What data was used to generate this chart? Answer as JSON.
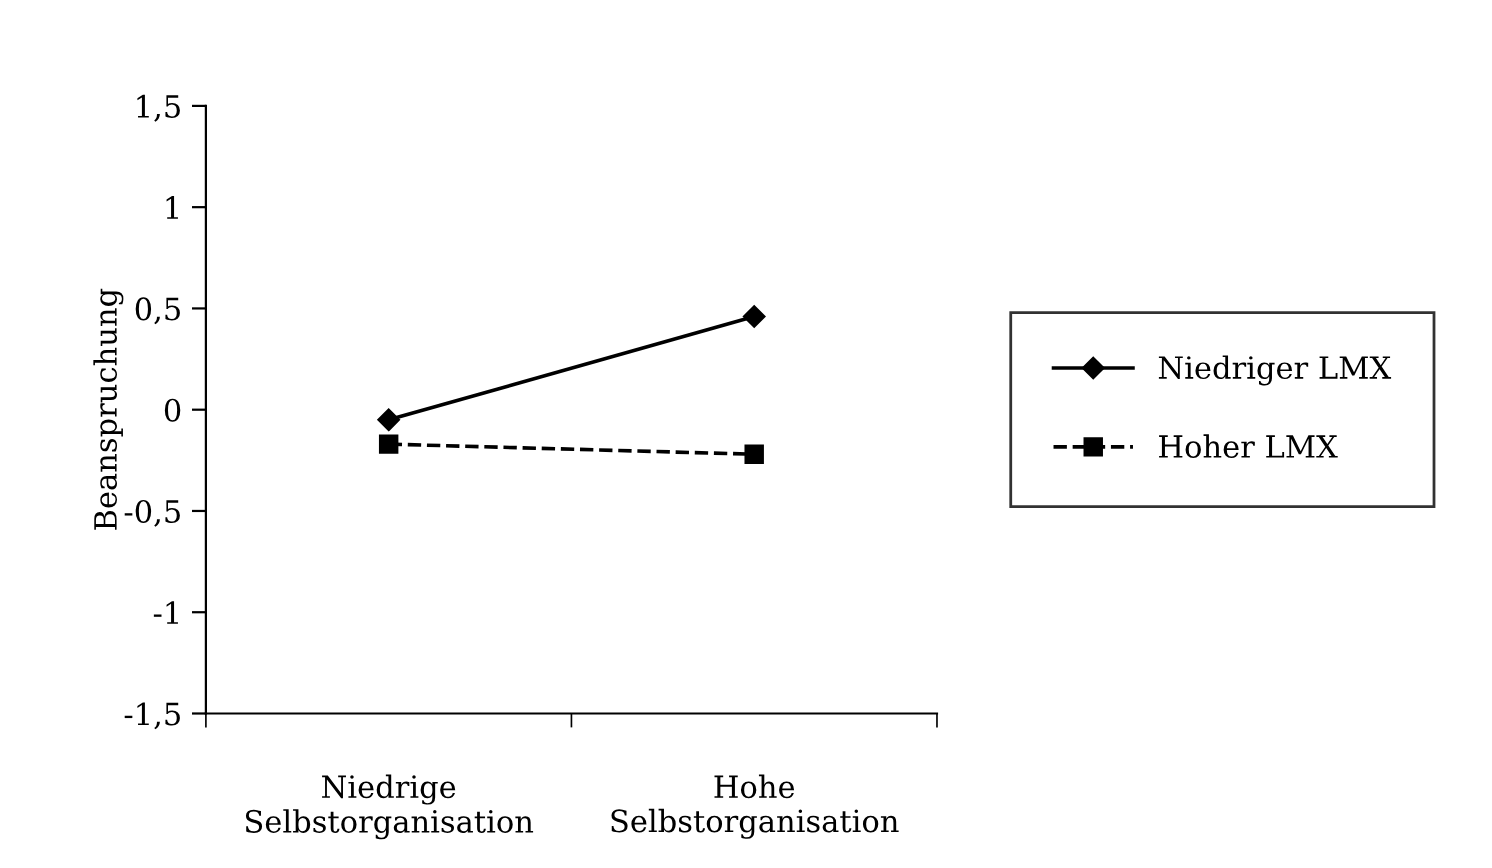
{
  "chart_data": {
    "type": "line",
    "ylabel": "Beanspruchung",
    "categories": [
      "Niedrige\nSelbstorganisation",
      "Hohe\nSelbstorganisation"
    ],
    "series": [
      {
        "name": "Niedriger LMX",
        "color": "#000000",
        "values": [
          -0.05,
          0.46
        ],
        "marker": "diamond",
        "line_style": "solid"
      },
      {
        "name": "Hoher LMX",
        "color": "#000000",
        "values": [
          -0.17,
          -0.22
        ],
        "marker": "square",
        "line_style": "dashed"
      }
    ],
    "ylim": [
      -1.5,
      1.5
    ],
    "yticks": [
      {
        "value": -1.5,
        "label": "-1,5"
      },
      {
        "value": -1,
        "label": "-1"
      },
      {
        "value": -0.5,
        "label": "-0,5"
      },
      0,
      {
        "value": 0.5,
        "label": "0,5"
      },
      1,
      {
        "value": 1.5,
        "label": "1,5"
      }
    ],
    "grid": false,
    "legend": "right"
  }
}
